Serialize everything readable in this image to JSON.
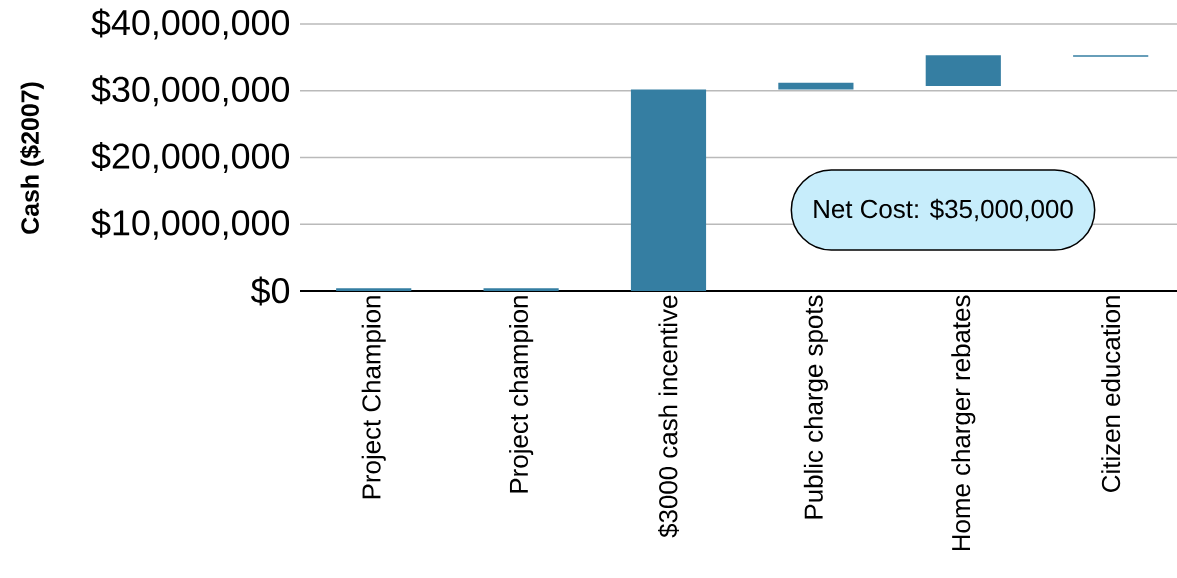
{
  "chart_data": {
    "type": "bar",
    "ylabel": "Cash ($2007)",
    "categories": [
      "Project Champion",
      "Project champion",
      "$3000 cash incentive",
      "Public charge spots",
      "Home charger rebates",
      "Citizen education"
    ],
    "values": [
      400000,
      400000,
      30200000,
      1000000,
      4600000,
      200000
    ],
    "base": [
      0,
      0,
      0,
      30200000,
      30700000,
      35100000
    ],
    "color": "#357ea2",
    "ylim": [
      0,
      40000000
    ],
    "yticks": [
      {
        "value": 0,
        "label": "$0"
      },
      {
        "value": 10000000,
        "label": "$10,000,000"
      },
      {
        "value": 20000000,
        "label": "$20,000,000"
      },
      {
        "value": 30000000,
        "label": "$30,000,000"
      },
      {
        "value": 40000000,
        "label": "$40,000,000"
      }
    ],
    "grid": "y",
    "annotations": [
      "Net Cost: $35,000,000"
    ]
  }
}
